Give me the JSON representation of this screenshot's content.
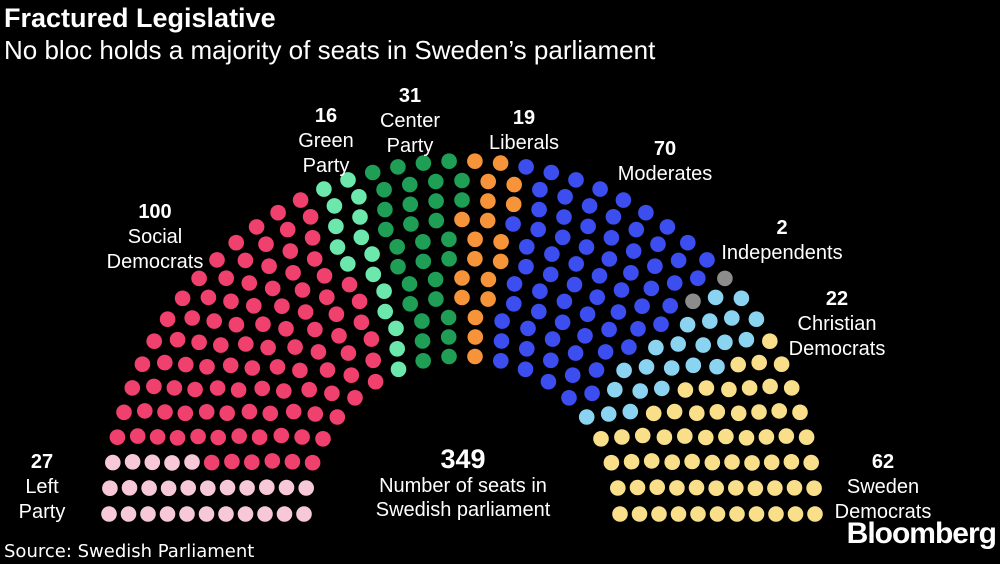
{
  "header": {
    "title": "Fractured Legislative",
    "subtitle": "No bloc holds a majority of seats in Sweden’s parliament"
  },
  "chart_data": {
    "type": "parliament",
    "title": "Fractured Legislative",
    "subtitle": "No bloc holds a majority of seats in Sweden’s parliament",
    "total_seats": 349,
    "total_label": "Number of seats in Swedish parliament",
    "parties": [
      {
        "name": "Left Party",
        "label_lines": [
          "Left",
          "Party"
        ],
        "seats": 27,
        "color": "#f7c9d8"
      },
      {
        "name": "Social Democrats",
        "label_lines": [
          "Social",
          "Democrats"
        ],
        "seats": 100,
        "color": "#f0406e"
      },
      {
        "name": "Green Party",
        "label_lines": [
          "Green",
          "Party"
        ],
        "seats": 16,
        "color": "#6de8ad"
      },
      {
        "name": "Center Party",
        "label_lines": [
          "Center",
          "Party"
        ],
        "seats": 31,
        "color": "#1f9e55"
      },
      {
        "name": "Liberals",
        "label_lines": [
          "Liberals"
        ],
        "seats": 19,
        "color": "#f7943a"
      },
      {
        "name": "Moderates",
        "label_lines": [
          "Moderates"
        ],
        "seats": 70,
        "color": "#3d4ef0"
      },
      {
        "name": "Independents",
        "label_lines": [
          "Independents"
        ],
        "seats": 2,
        "color": "#8c8c8c"
      },
      {
        "name": "Christian Democrats",
        "label_lines": [
          "Christian",
          "Democrats"
        ],
        "seats": 22,
        "color": "#8ad4f2"
      },
      {
        "name": "Sweden Democrats",
        "label_lines": [
          "Sweden",
          "Democrats"
        ],
        "seats": 62,
        "color": "#f9df8a"
      }
    ]
  },
  "footer": {
    "source": "Source: Swedish Parliament",
    "brand": "Bloomberg"
  }
}
